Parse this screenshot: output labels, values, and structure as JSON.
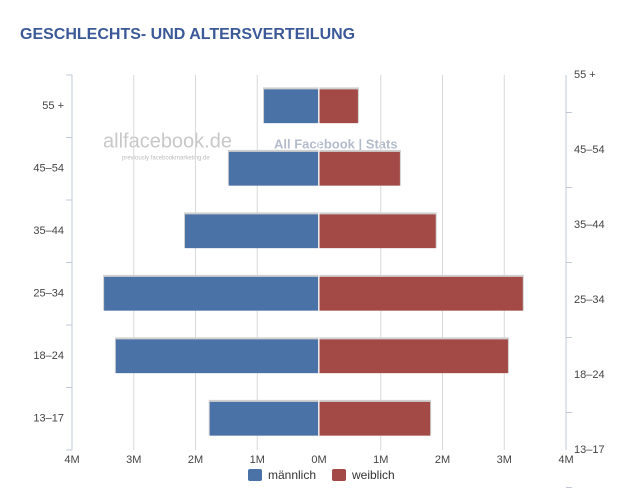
{
  "chart_data": {
    "type": "pyramid",
    "title": "GESCHLECHTS- UND ALTERSVERTEILUNG",
    "categories": [
      "55 +",
      "45–54",
      "35–44",
      "25–34",
      "18–24",
      "13–17"
    ],
    "series": [
      {
        "name": "männlich",
        "color": "#4a72a6",
        "values": [
          -0.89,
          -1.46,
          -2.17,
          -3.48,
          -3.29,
          -1.77
        ]
      },
      {
        "name": "weiblich",
        "color": "#a34a46",
        "values": [
          0.63,
          1.31,
          1.89,
          3.3,
          3.06,
          1.8
        ]
      }
    ],
    "xlim": [
      -4,
      4
    ],
    "xticks": [
      {
        "value": -4,
        "label": "4M"
      },
      {
        "value": -3,
        "label": "3M"
      },
      {
        "value": -2,
        "label": "2M"
      },
      {
        "value": -1,
        "label": "1M"
      },
      {
        "value": 0,
        "label": "0M"
      },
      {
        "value": 1,
        "label": "1M"
      },
      {
        "value": 2,
        "label": "2M"
      },
      {
        "value": 3,
        "label": "3M"
      },
      {
        "value": 4,
        "label": "4M"
      }
    ],
    "grid": true,
    "legend": "bottom",
    "watermark": {
      "site": "allfacebook.de",
      "sub": "previously facebookmarketing.de",
      "brand": "All Facebook | Stats"
    }
  }
}
